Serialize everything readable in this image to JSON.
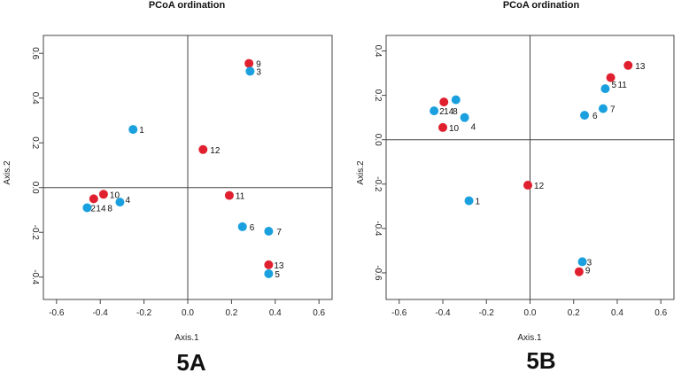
{
  "colors": {
    "group_a": "#e0202f",
    "group_b": "#1aa0de",
    "frame": "#444444"
  },
  "panel_labels": [
    "5A",
    "5B"
  ],
  "chart_data": [
    {
      "type": "scatter",
      "title": "PCoA ordination",
      "xlabel": "Axis.1",
      "ylabel": "Axis.2",
      "xlim": [
        -0.66,
        0.66
      ],
      "ylim": [
        -0.5,
        0.68
      ],
      "xticks": [
        -0.6,
        -0.4,
        -0.2,
        0.0,
        0.2,
        0.4,
        0.6
      ],
      "xtick_labels": [
        "-0.6",
        "-0.4",
        "-0.2",
        "0.0",
        "0.2",
        "0.4",
        "0.6"
      ],
      "yticks": [
        -0.4,
        -0.2,
        0.0,
        0.2,
        0.4,
        0.6
      ],
      "ytick_labels": [
        "-0.4",
        "-0.2",
        "0.0",
        "0.2",
        "0.4",
        "0.6"
      ],
      "points": [
        {
          "x": 0.28,
          "y": 0.555,
          "group": "a"
        },
        {
          "x": 0.285,
          "y": 0.52,
          "group": "b"
        },
        {
          "x": -0.25,
          "y": 0.26,
          "group": "b"
        },
        {
          "x": 0.07,
          "y": 0.17,
          "group": "a"
        },
        {
          "x": 0.19,
          "y": -0.035,
          "group": "a"
        },
        {
          "x": -0.385,
          "y": -0.03,
          "group": "a"
        },
        {
          "x": -0.43,
          "y": -0.05,
          "group": "a"
        },
        {
          "x": -0.31,
          "y": -0.065,
          "group": "b"
        },
        {
          "x": -0.46,
          "y": -0.09,
          "group": "b"
        },
        {
          "x": 0.25,
          "y": -0.175,
          "group": "b"
        },
        {
          "x": 0.37,
          "y": -0.195,
          "group": "b"
        },
        {
          "x": 0.37,
          "y": -0.345,
          "group": "a"
        },
        {
          "x": 0.37,
          "y": -0.385,
          "group": "b"
        }
      ],
      "labels": [
        {
          "x": 0.28,
          "y": 0.555,
          "text": "9",
          "dx": 8,
          "dy": 4
        },
        {
          "x": 0.285,
          "y": 0.52,
          "text": "3",
          "dx": 7,
          "dy": 4
        },
        {
          "x": -0.25,
          "y": 0.26,
          "text": "1",
          "dx": 7,
          "dy": 4
        },
        {
          "x": 0.07,
          "y": 0.17,
          "text": "12",
          "dx": 8,
          "dy": 4
        },
        {
          "x": 0.19,
          "y": -0.035,
          "text": "11",
          "dx": 7,
          "dy": 4
        },
        {
          "x": -0.385,
          "y": -0.03,
          "text": "10",
          "dx": 7,
          "dy": 4
        },
        {
          "x": -0.31,
          "y": -0.065,
          "text": "4",
          "dx": 6,
          "dy": 1
        },
        {
          "x": -0.46,
          "y": -0.09,
          "text": "2",
          "dx": 4,
          "dy": 4
        },
        {
          "x": -0.46,
          "y": -0.09,
          "text": "14",
          "dx": 10,
          "dy": 4
        },
        {
          "x": -0.46,
          "y": -0.09,
          "text": "8",
          "dx": 23,
          "dy": 4
        },
        {
          "x": 0.25,
          "y": -0.175,
          "text": "6",
          "dx": 8,
          "dy": 4
        },
        {
          "x": 0.37,
          "y": -0.195,
          "text": "7",
          "dx": 9,
          "dy": 4
        },
        {
          "x": 0.37,
          "y": -0.345,
          "text": "13",
          "dx": 6,
          "dy": 4
        },
        {
          "x": 0.37,
          "y": -0.385,
          "text": "5",
          "dx": 7,
          "dy": 4
        }
      ]
    },
    {
      "type": "scatter",
      "title": "PCoA ordination",
      "xlabel": "Axis.1",
      "ylabel": "Axis.2",
      "xlim": [
        -0.66,
        0.66
      ],
      "ylim": [
        -0.72,
        0.47
      ],
      "xticks": [
        -0.6,
        -0.4,
        -0.2,
        0.0,
        0.2,
        0.4,
        0.6
      ],
      "xtick_labels": [
        "-0.6",
        "-0.4",
        "-0.2",
        "0.0",
        "0.2",
        "0.4",
        "0.6"
      ],
      "yticks": [
        -0.6,
        -0.4,
        -0.2,
        0.0,
        0.2,
        0.4
      ],
      "ytick_labels": [
        "-0.6",
        "-0.4",
        "-0.2",
        "0.0",
        "0.2",
        "0.4"
      ],
      "points": [
        {
          "x": 0.45,
          "y": 0.335,
          "group": "a"
        },
        {
          "x": 0.37,
          "y": 0.28,
          "group": "a"
        },
        {
          "x": 0.345,
          "y": 0.23,
          "group": "b"
        },
        {
          "x": 0.335,
          "y": 0.14,
          "group": "b"
        },
        {
          "x": 0.25,
          "y": 0.11,
          "group": "b"
        },
        {
          "x": -0.34,
          "y": 0.18,
          "group": "b"
        },
        {
          "x": -0.395,
          "y": 0.17,
          "group": "a"
        },
        {
          "x": -0.44,
          "y": 0.13,
          "group": "b"
        },
        {
          "x": -0.3,
          "y": 0.1,
          "group": "b"
        },
        {
          "x": -0.4,
          "y": 0.055,
          "group": "a"
        },
        {
          "x": -0.01,
          "y": -0.205,
          "group": "a"
        },
        {
          "x": -0.28,
          "y": -0.275,
          "group": "b"
        },
        {
          "x": 0.24,
          "y": -0.55,
          "group": "b"
        },
        {
          "x": 0.225,
          "y": -0.595,
          "group": "a"
        }
      ],
      "labels": [
        {
          "x": 0.45,
          "y": 0.335,
          "text": "13",
          "dx": 8,
          "dy": 4
        },
        {
          "x": 0.345,
          "y": 0.23,
          "text": "5",
          "dx": 7,
          "dy": -1
        },
        {
          "x": 0.345,
          "y": 0.23,
          "text": "11",
          "dx": 14,
          "dy": -1
        },
        {
          "x": 0.335,
          "y": 0.14,
          "text": "7",
          "dx": 8,
          "dy": 4
        },
        {
          "x": 0.25,
          "y": 0.11,
          "text": "6",
          "dx": 9,
          "dy": 4
        },
        {
          "x": -0.44,
          "y": 0.13,
          "text": "2",
          "dx": 6,
          "dy": 4
        },
        {
          "x": -0.44,
          "y": 0.13,
          "text": "14",
          "dx": 11,
          "dy": 4
        },
        {
          "x": -0.44,
          "y": 0.13,
          "text": "8",
          "dx": 21,
          "dy": 4
        },
        {
          "x": -0.4,
          "y": 0.055,
          "text": "10",
          "dx": 7,
          "dy": 4
        },
        {
          "x": -0.3,
          "y": 0.1,
          "text": "4",
          "dx": 7,
          "dy": 14
        },
        {
          "x": -0.01,
          "y": -0.205,
          "text": "12",
          "dx": 7,
          "dy": 4
        },
        {
          "x": -0.28,
          "y": -0.275,
          "text": "1",
          "dx": 7,
          "dy": 4
        },
        {
          "x": 0.24,
          "y": -0.55,
          "text": "3",
          "dx": 5,
          "dy": 4
        },
        {
          "x": 0.225,
          "y": -0.595,
          "text": "9",
          "dx": 7,
          "dy": 2
        }
      ]
    }
  ]
}
